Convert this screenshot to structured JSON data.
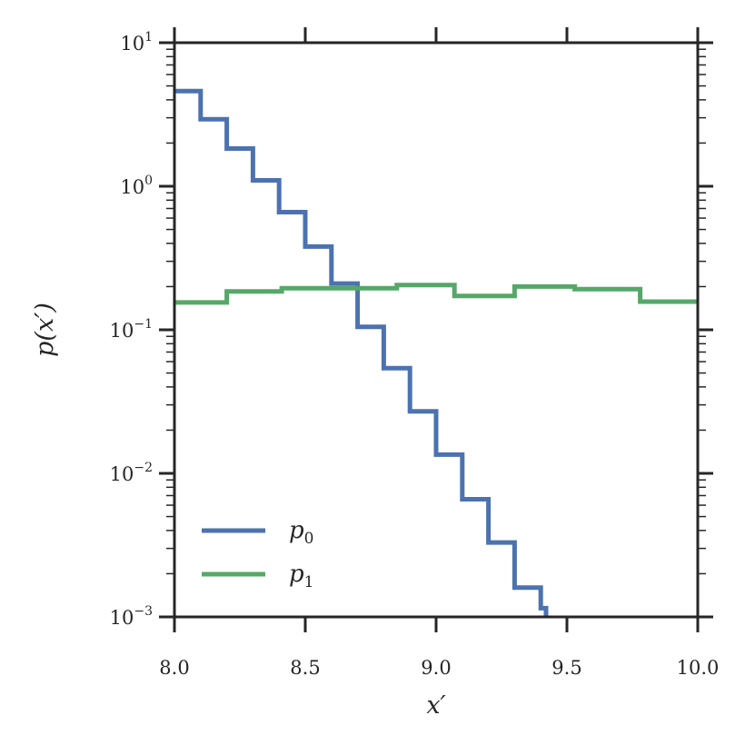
{
  "chart_data": {
    "type": "line",
    "xlabel": "x′",
    "ylabel": "p(x′)",
    "xlim": [
      8.0,
      10.0
    ],
    "ylim": [
      0.001,
      10
    ],
    "yscale": "log",
    "grid": false,
    "legend_position": "lower-left",
    "x_ticks": [
      8.0,
      8.5,
      9.0,
      9.5,
      10.0
    ],
    "x_tick_labels": [
      "8.0",
      "8.5",
      "9.0",
      "9.5",
      "10.0"
    ],
    "y_ticks": [
      {
        "value": 10,
        "base": "10",
        "exp": "1"
      },
      {
        "value": 1,
        "base": "10",
        "exp": "0"
      },
      {
        "value": 0.1,
        "base": "10",
        "exp": "−1"
      },
      {
        "value": 0.01,
        "base": "10",
        "exp": "−2"
      },
      {
        "value": 0.001,
        "base": "10",
        "exp": "−3"
      }
    ],
    "series": [
      {
        "name": "p",
        "subscript": "0",
        "color": "#4c72b0",
        "style": "steps",
        "x": [
          8.0,
          8.1,
          8.2,
          8.3,
          8.4,
          8.5,
          8.6,
          8.7,
          8.8,
          8.9,
          9.0,
          9.1,
          9.2,
          9.3,
          9.4,
          9.42
        ],
        "y": [
          4.6,
          2.93,
          1.83,
          1.1,
          0.66,
          0.38,
          0.21,
          0.105,
          0.054,
          0.027,
          0.0135,
          0.0066,
          0.0033,
          0.0016,
          0.00115,
          0.001
        ]
      },
      {
        "name": "p",
        "subscript": "1",
        "color": "#55a868",
        "style": "steps",
        "x": [
          8.0,
          8.2,
          8.2,
          8.41,
          8.41,
          8.85,
          8.85,
          9.07,
          9.07,
          9.3,
          9.3,
          9.53,
          9.53,
          9.78,
          9.78,
          10.0
        ],
        "y": [
          0.155,
          0.155,
          0.185,
          0.185,
          0.195,
          0.195,
          0.205,
          0.205,
          0.172,
          0.172,
          0.2,
          0.2,
          0.192,
          0.192,
          0.157,
          0.157
        ]
      }
    ]
  }
}
